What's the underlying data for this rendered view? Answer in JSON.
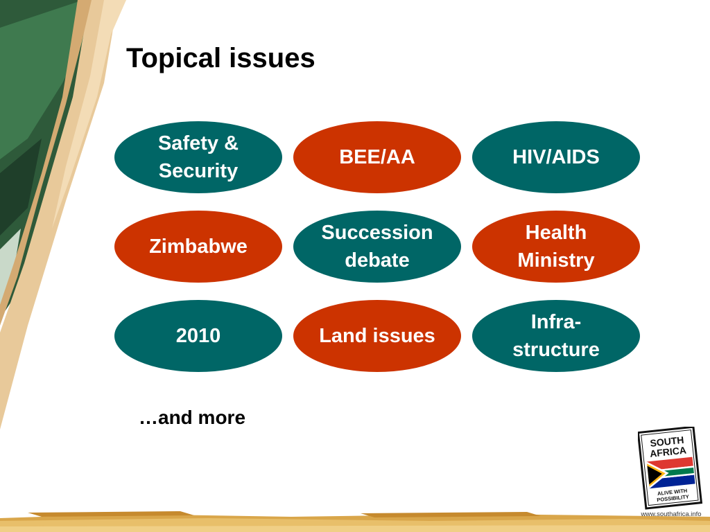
{
  "slide": {
    "title": "Topical issues",
    "topics": [
      {
        "label": "Safety & Security",
        "style": "teal"
      },
      {
        "label": "BEE/AA",
        "style": "red"
      },
      {
        "label": "HIV/AIDS",
        "style": "teal"
      },
      {
        "label": "Zimbabwe",
        "style": "red"
      },
      {
        "label": "Succession debate",
        "style": "teal"
      },
      {
        "label": "Health Ministry",
        "style": "red"
      },
      {
        "label": "2010",
        "style": "teal"
      },
      {
        "label": "Land issues",
        "style": "red"
      },
      {
        "label": "Infra-structure",
        "style": "teal"
      }
    ],
    "more_text": "…and more",
    "colors": {
      "teal": "#006666",
      "red": "#cc3300",
      "pencil": "#e8c99a",
      "green_stripe": "#2e5a3a",
      "footer": "#d9a64a"
    }
  },
  "logo": {
    "line1": "SOUTH",
    "line2": "AFRICA",
    "tagline1": "ALIVE WITH",
    "tagline2": "POSSIBILITY"
  },
  "footer": {
    "url": "www.southafrica.info"
  }
}
